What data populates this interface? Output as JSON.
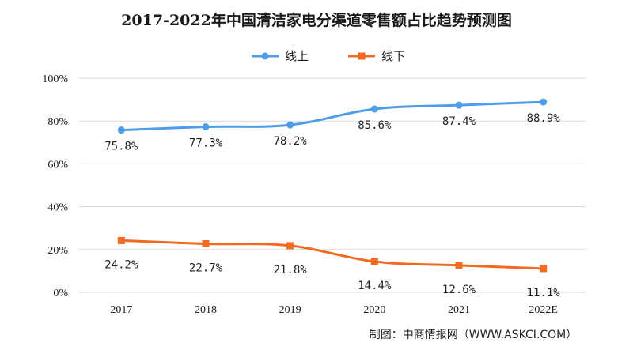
{
  "chart_data": {
    "type": "line",
    "title": "2017-2022年中国清洁家电分渠道零售额占比趋势预测图",
    "categories": [
      "2017",
      "2018",
      "2019",
      "2020",
      "2021",
      "2022E"
    ],
    "y_ticks": [
      "0%",
      "20%",
      "40%",
      "60%",
      "80%",
      "100%"
    ],
    "ylim": [
      0,
      100
    ],
    "grid": true,
    "legend_position": "top",
    "series": [
      {
        "name": "线上",
        "color": "#4e9de8",
        "values": [
          75.8,
          77.3,
          78.2,
          85.6,
          87.4,
          88.9
        ],
        "labels": [
          "75.8%",
          "77.3%",
          "78.2%",
          "85.6%",
          "87.4%",
          "88.9%"
        ]
      },
      {
        "name": "线下",
        "color": "#f26b21",
        "values": [
          24.2,
          22.7,
          21.8,
          14.4,
          12.6,
          11.1
        ],
        "labels": [
          "24.2%",
          "22.7%",
          "21.8%",
          "14.4%",
          "12.6%",
          "11.1%"
        ]
      }
    ],
    "source": "制图：中商情报网（WWW.ASKCI.COM）"
  }
}
